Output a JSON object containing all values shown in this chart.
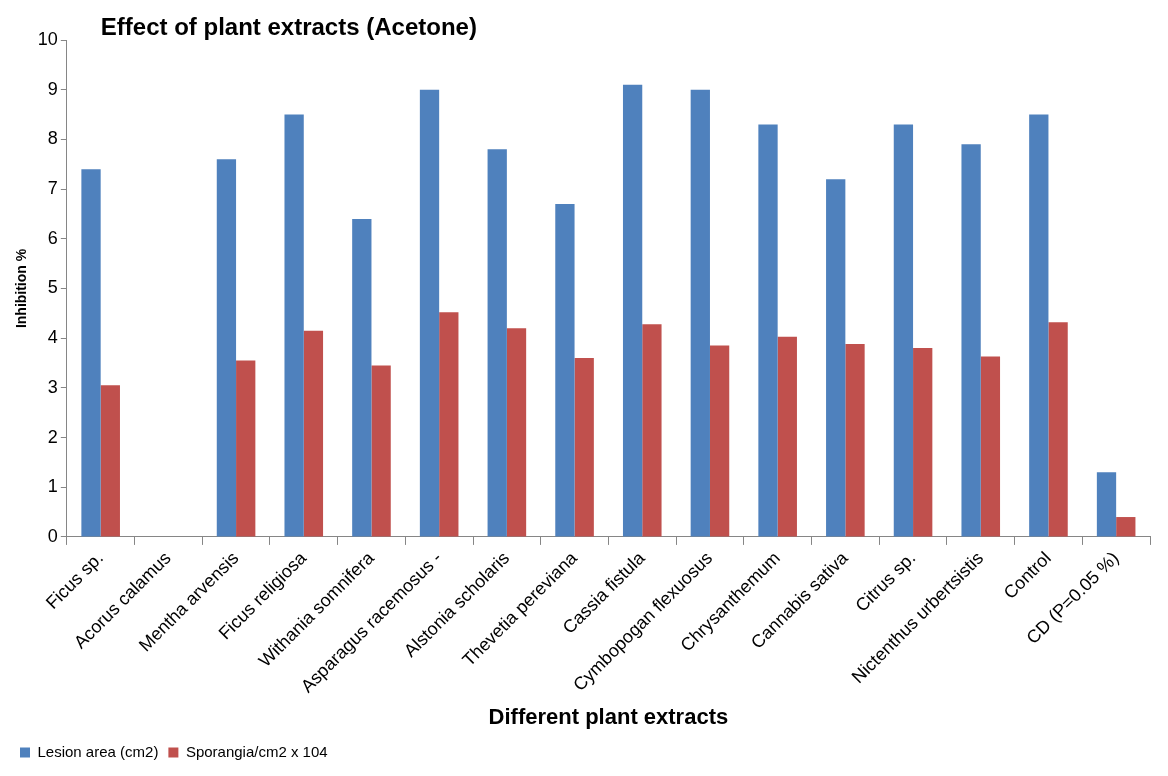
{
  "chart_data": {
    "type": "bar",
    "title": "Effect of plant extracts (Acetone)",
    "xlabel": "Different plant extracts",
    "ylabel": "Inhibition %",
    "categories": [
      "Ficus sp.",
      "Acorus calamus",
      "Mentha arvensis",
      "Ficus religiosa",
      "Withania somnifera",
      "Asparagus racemosus -",
      "Alstonia scholaris",
      "Thevetia pereviana",
      "Cassia fistula",
      "Cymbopogan flexuosus",
      "Chrysanthemum",
      "Cannabis sativa",
      "Citrus sp.",
      "Nictenthus urbertsistis",
      "Control",
      "CD (P=0.05 %)"
    ],
    "series": [
      {
        "name": "Lesion area (cm2)",
        "color": "#4f81bd",
        "values": [
          7.4,
          0,
          7.6,
          8.5,
          6.4,
          9.0,
          7.8,
          6.7,
          9.1,
          9.0,
          8.3,
          7.2,
          8.3,
          7.9,
          8.5,
          1.3
        ]
      },
      {
        "name": "Sporangia/cm2 x 104",
        "color": "#c0504d",
        "values": [
          3.05,
          0,
          3.55,
          4.15,
          3.45,
          4.52,
          4.2,
          3.6,
          4.28,
          3.85,
          4.03,
          3.88,
          3.8,
          3.63,
          4.32,
          0.4
        ]
      }
    ],
    "ylim": [
      0,
      10
    ],
    "yticks": [
      0,
      1,
      2,
      3,
      4,
      5,
      6,
      7,
      8,
      9,
      10
    ],
    "legend": "bottom left"
  }
}
